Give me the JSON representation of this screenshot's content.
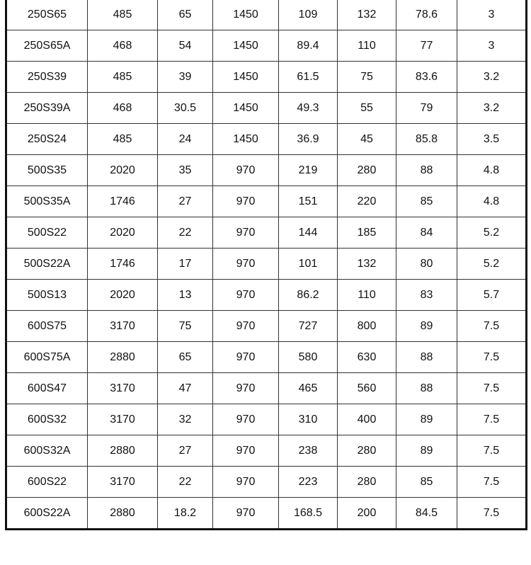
{
  "table": {
    "rows": [
      [
        "250S65",
        "485",
        "65",
        "1450",
        "109",
        "132",
        "78.6",
        "3"
      ],
      [
        "250S65A",
        "468",
        "54",
        "1450",
        "89.4",
        "110",
        "77",
        "3"
      ],
      [
        "250S39",
        "485",
        "39",
        "1450",
        "61.5",
        "75",
        "83.6",
        "3.2"
      ],
      [
        "250S39A",
        "468",
        "30.5",
        "1450",
        "49.3",
        "55",
        "79",
        "3.2"
      ],
      [
        "250S24",
        "485",
        "24",
        "1450",
        "36.9",
        "45",
        "85.8",
        "3.5"
      ],
      [
        "500S35",
        "2020",
        "35",
        "970",
        "219",
        "280",
        "88",
        "4.8"
      ],
      [
        "500S35A",
        "1746",
        "27",
        "970",
        "151",
        "220",
        "85",
        "4.8"
      ],
      [
        "500S22",
        "2020",
        "22",
        "970",
        "144",
        "185",
        "84",
        "5.2"
      ],
      [
        "500S22A",
        "1746",
        "17",
        "970",
        "101",
        "132",
        "80",
        "5.2"
      ],
      [
        "500S13",
        "2020",
        "13",
        "970",
        "86.2",
        "110",
        "83",
        "5.7"
      ],
      [
        "600S75",
        "3170",
        "75",
        "970",
        "727",
        "800",
        "89",
        "7.5"
      ],
      [
        "600S75A",
        "2880",
        "65",
        "970",
        "580",
        "630",
        "88",
        "7.5"
      ],
      [
        "600S47",
        "3170",
        "47",
        "970",
        "465",
        "560",
        "88",
        "7.5"
      ],
      [
        "600S32",
        "3170",
        "32",
        "970",
        "310",
        "400",
        "89",
        "7.5"
      ],
      [
        "600S32A",
        "2880",
        "27",
        "970",
        "238",
        "280",
        "89",
        "7.5"
      ],
      [
        "600S22",
        "3170",
        "22",
        "970",
        "223",
        "280",
        "85",
        "7.5"
      ],
      [
        "600S22A",
        "2880",
        "18.2",
        "970",
        "168.5",
        "200",
        "84.5",
        "7.5"
      ]
    ]
  }
}
